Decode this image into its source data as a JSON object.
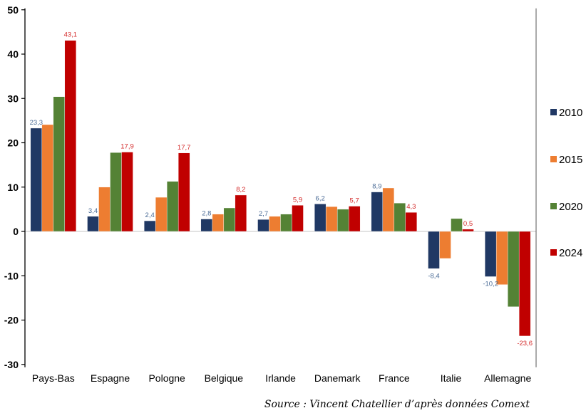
{
  "chart_data": {
    "type": "bar",
    "title": "",
    "xlabel": "",
    "ylabel": "",
    "ylim": [
      -30,
      50
    ],
    "yticks": [
      50,
      40,
      30,
      20,
      10,
      0,
      -10,
      -20,
      -30
    ],
    "grid": false,
    "legend_position": "right",
    "categories": [
      "Pays-Bas",
      "Espagne",
      "Pologne",
      "Belgique",
      "Irlande",
      "Danemark",
      "France",
      "Italie",
      "Allemagne"
    ],
    "series": [
      {
        "name": "2010",
        "color": "#203864",
        "label_color": "#4a6b96",
        "labeled": true,
        "values": [
          23.3,
          3.4,
          2.4,
          2.8,
          2.7,
          6.2,
          8.9,
          -8.4,
          -10.2
        ]
      },
      {
        "name": "2015",
        "color": "#ed7d31",
        "labeled": false,
        "values": [
          24.1,
          10.0,
          7.7,
          3.9,
          3.4,
          5.6,
          9.8,
          -6.1,
          -12.0
        ]
      },
      {
        "name": "2020",
        "color": "#548235",
        "labeled": false,
        "values": [
          30.4,
          17.8,
          11.3,
          5.3,
          3.9,
          5.0,
          6.4,
          2.9,
          -17.0
        ]
      },
      {
        "name": "2024",
        "color": "#c00000",
        "label_color": "#d42a2a",
        "labeled": true,
        "values": [
          43.1,
          17.9,
          17.7,
          8.2,
          5.9,
          5.7,
          4.3,
          0.5,
          -23.6
        ]
      }
    ],
    "data_labels": {
      "2010": [
        "23,3",
        "3,4",
        "2,4",
        "2,8",
        "2,7",
        "6,2",
        "8,9",
        "-8,4",
        "-10,2"
      ],
      "2024": [
        "43,1",
        "17,9",
        "17,7",
        "8,2",
        "5,9",
        "5,7",
        "4,3",
        "0,5",
        "-23,6"
      ]
    },
    "source": "Source : Vincent Chatellier d’après données Comext"
  }
}
